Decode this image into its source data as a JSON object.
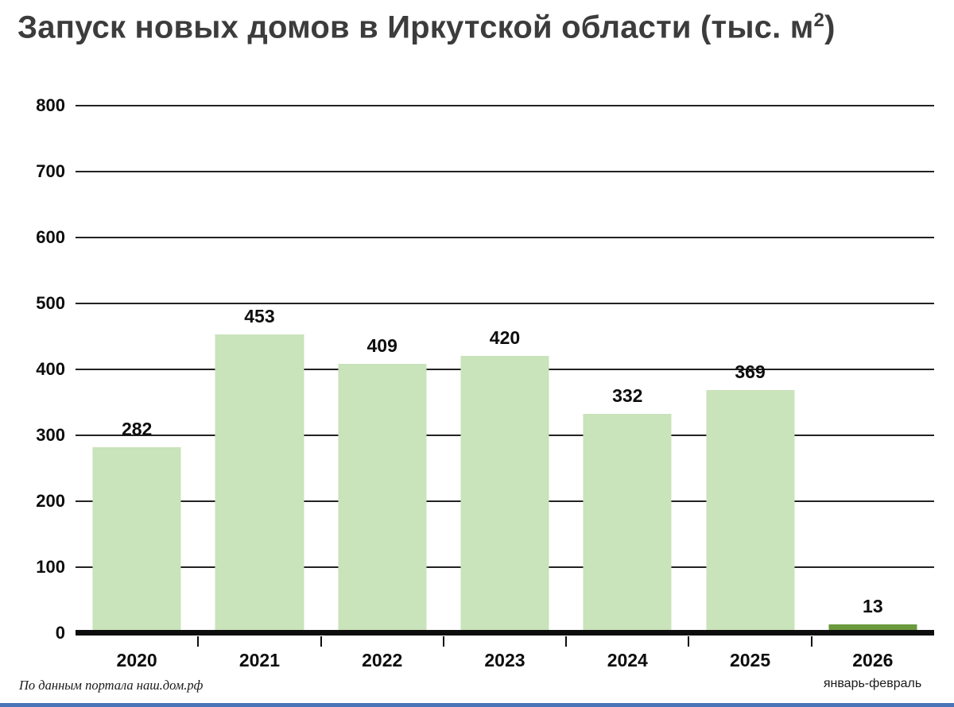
{
  "chart_data": {
    "type": "bar",
    "title": "Запуск новых домов в Иркутской области (тыс. м²)",
    "title_prefix": "Запуск новых домов в Иркутской области (тыс. м",
    "title_sup": "2",
    "title_suffix": ")",
    "categories": [
      "2020",
      "2021",
      "2022",
      "2023",
      "2024",
      "2025",
      "2026"
    ],
    "values": [
      282,
      453,
      409,
      420,
      332,
      369,
      13
    ],
    "bar_colors": [
      "#c9e3ba",
      "#c9e3ba",
      "#c9e3ba",
      "#c9e3ba",
      "#c9e3ba",
      "#c9e3ba",
      "#6a9a3c"
    ],
    "ylim": [
      0,
      800
    ],
    "yticks": [
      0,
      100,
      200,
      300,
      400,
      500,
      600,
      700,
      800
    ],
    "grid": "horizontal",
    "legend": "none",
    "xlabel": "",
    "ylabel": "",
    "last_category_note": "январь-февраль",
    "source_note": "По данным портала наш.дом.рф",
    "accent_color": "#c9e3ba",
    "highlight_color": "#6a9a3c",
    "axis_color": "#0d0d0d",
    "bottom_border_color": "#4a74b8"
  }
}
